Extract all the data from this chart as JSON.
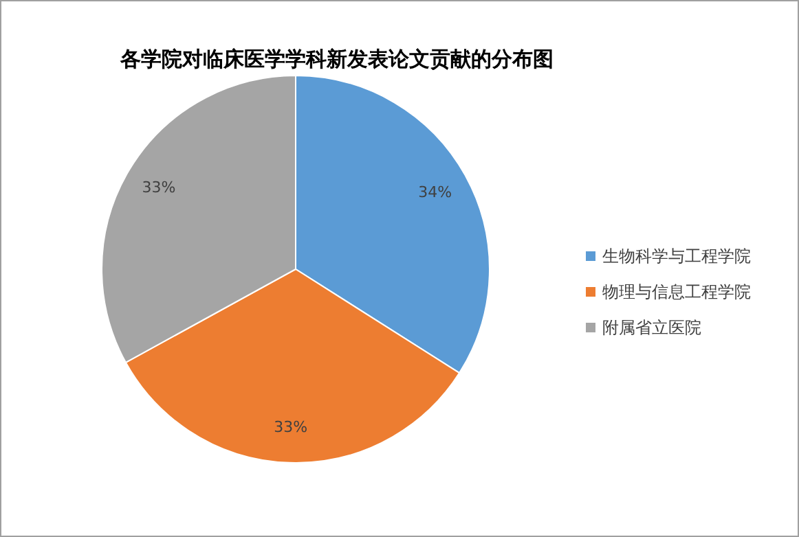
{
  "chart_data": {
    "type": "pie",
    "title": "各学院对临床医学学科新发表论文贡献的分布图",
    "categories": [
      "生物科学与工程学院",
      "物理与信息工程学院",
      "附属省立医院"
    ],
    "values": [
      34,
      33,
      33
    ],
    "colors": [
      "#5b9bd5",
      "#ed7d31",
      "#a5a5a5"
    ],
    "value_labels": [
      "34%",
      "33%",
      "33%"
    ],
    "legend": "right"
  }
}
